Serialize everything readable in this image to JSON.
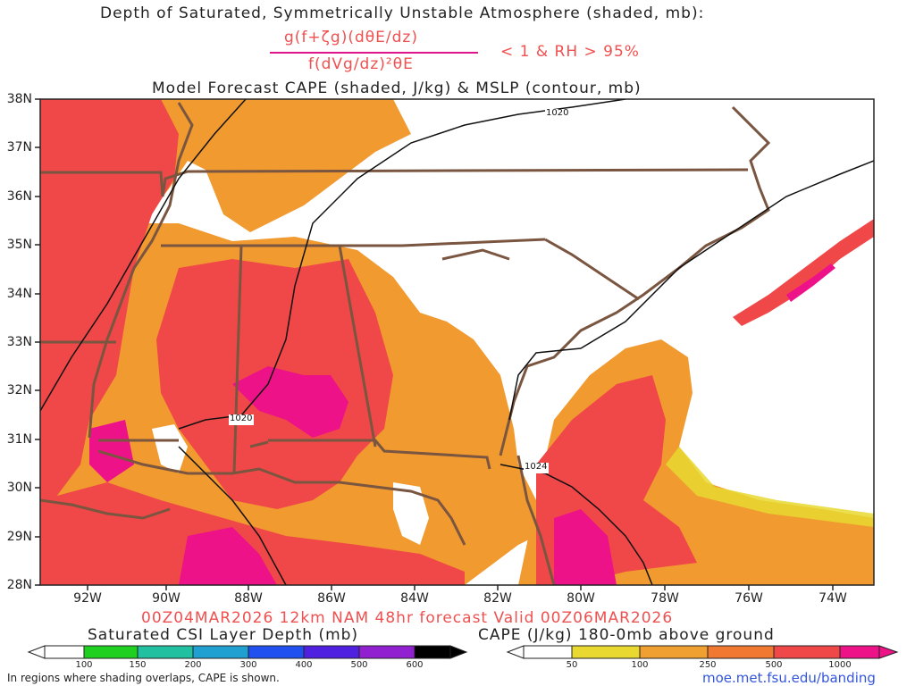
{
  "header": {
    "title": "Depth of Saturated, Symmetrically Unstable Atmosphere (shaded, mb):",
    "numerator": "g(f+ζg)(dθE/dz)",
    "denominator": "f(dVg/dz)²θE",
    "condition": "< 1 & RH > 95%",
    "subtitle": "Model Forecast CAPE (shaded, J/kg) & MSLP (contour, mb)"
  },
  "map": {
    "lat_labels": [
      "38N",
      "37N",
      "36N",
      "35N",
      "34N",
      "33N",
      "32N",
      "31N",
      "30N",
      "29N",
      "28N"
    ],
    "lon_labels": [
      "92W",
      "90W",
      "88W",
      "86W",
      "84W",
      "82W",
      "80W",
      "78W",
      "76W",
      "74W"
    ],
    "isobar_labels": [
      "1020",
      "1020",
      "1024"
    ]
  },
  "valid_text": "00Z04MAR2026 12km NAM 48hr forecast Valid 00Z06MAR2026",
  "colorbars": {
    "csi": {
      "title": "Saturated CSI Layer Depth (mb)",
      "ticks": [
        "100",
        "150",
        "200",
        "300",
        "400",
        "500",
        "600"
      ],
      "colors": [
        "#ffffff",
        "#20d020",
        "#20c0a0",
        "#20a0d0",
        "#2050f0",
        "#5020e0",
        "#9020d0",
        "#000000"
      ]
    },
    "cape": {
      "title": "CAPE (J/kg) 180-0mb above ground",
      "ticks": [
        "50",
        "100",
        "250",
        "500",
        "1000"
      ],
      "colors": [
        "#ffffff",
        "#e8d830",
        "#f0a030",
        "#f07830",
        "#f04848",
        "#ee1288"
      ]
    }
  },
  "footer": {
    "note": "In regions where shading overlaps, CAPE is shown.",
    "url": "moe.met.fsu.edu/banding"
  }
}
